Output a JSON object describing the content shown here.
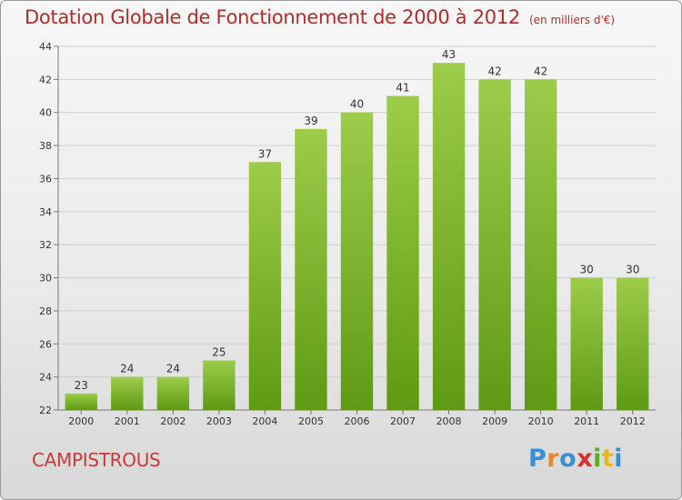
{
  "title": "Dotation Globale de Fonctionnement de 2000 à 2012",
  "subtitle": "(en milliers d'€)",
  "commune": "CAMPISTROUS",
  "logo": {
    "letters": [
      "P",
      "r",
      "o",
      "x",
      "i",
      "t",
      "i"
    ],
    "colors": [
      "#3a8fd0",
      "#e8872a",
      "#3a8fd0",
      "#d8312e",
      "#5aab2e",
      "#e8b61e",
      "#3a8fd0"
    ]
  },
  "colors": {
    "title": "#b52a2a",
    "bar_top": "#9ccc4a",
    "bar_bottom": "#5f9a14",
    "grid": "#d0d0d0"
  },
  "chart_data": {
    "type": "bar",
    "categories": [
      "2000",
      "2001",
      "2002",
      "2003",
      "2004",
      "2005",
      "2006",
      "2007",
      "2008",
      "2009",
      "2010",
      "2011",
      "2012"
    ],
    "values": [
      23,
      24,
      24,
      25,
      37,
      39,
      40,
      41,
      43,
      42,
      42,
      30,
      30
    ],
    "title": "Dotation Globale de Fonctionnement de 2000 à 2012",
    "xlabel": "",
    "ylabel": "",
    "ylim": [
      22,
      44
    ],
    "yticks": [
      22,
      24,
      26,
      28,
      30,
      32,
      34,
      36,
      38,
      40,
      42,
      44
    ],
    "grid": true,
    "data_labels": true
  }
}
